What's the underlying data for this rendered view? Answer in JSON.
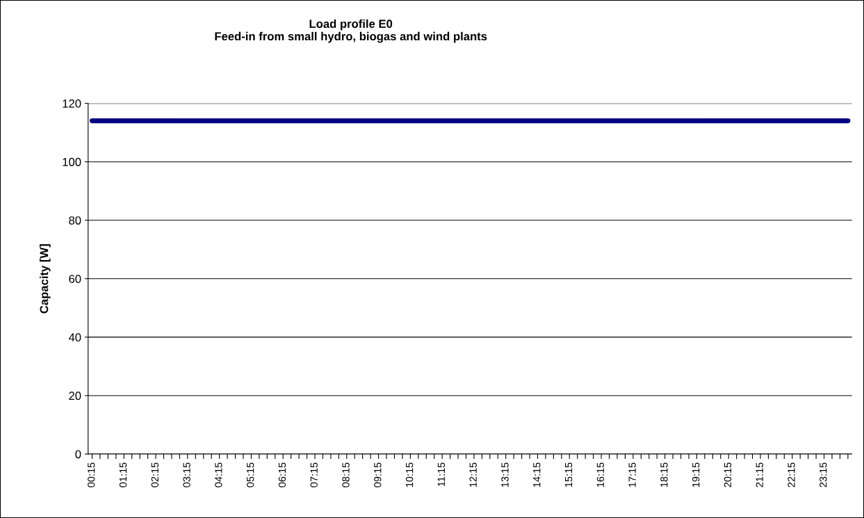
{
  "chart_data": {
    "type": "line",
    "title": "Load profile E0\nFeed-in from small hydro, biogas and wind plants",
    "ylabel": "Capacity [W]",
    "categories": [
      "00:15",
      null,
      null,
      null,
      "01:15",
      null,
      null,
      null,
      "02:15",
      null,
      null,
      null,
      "03:15",
      null,
      null,
      null,
      "04:15",
      null,
      null,
      null,
      "05:15",
      null,
      null,
      null,
      "06:15",
      null,
      null,
      null,
      "07:15",
      null,
      null,
      null,
      "08:15",
      null,
      null,
      null,
      "09:15",
      null,
      null,
      null,
      "10:15",
      null,
      null,
      null,
      "11:15",
      null,
      null,
      null,
      "12:15",
      null,
      null,
      null,
      "13:15",
      null,
      null,
      null,
      "14:15",
      null,
      null,
      null,
      "15:15",
      null,
      null,
      null,
      "16:15",
      null,
      null,
      null,
      "17:15",
      null,
      null,
      null,
      "18:15",
      null,
      null,
      null,
      "19:15",
      null,
      null,
      null,
      "20:15",
      null,
      null,
      null,
      "21:15",
      null,
      null,
      null,
      "22:15",
      null,
      null,
      null,
      "23:15",
      null,
      null,
      null
    ],
    "series": [
      {
        "color": "#000080",
        "values": [
          114,
          114,
          114,
          114,
          114,
          114,
          114,
          114,
          114,
          114,
          114,
          114,
          114,
          114,
          114,
          114,
          114,
          114,
          114,
          114,
          114,
          114,
          114,
          114,
          114,
          114,
          114,
          114,
          114,
          114,
          114,
          114,
          114,
          114,
          114,
          114,
          114,
          114,
          114,
          114,
          114,
          114,
          114,
          114,
          114,
          114,
          114,
          114,
          114,
          114,
          114,
          114,
          114,
          114,
          114,
          114,
          114,
          114,
          114,
          114,
          114,
          114,
          114,
          114,
          114,
          114,
          114,
          114,
          114,
          114,
          114,
          114,
          114,
          114,
          114,
          114,
          114,
          114,
          114,
          114,
          114,
          114,
          114,
          114,
          114,
          114,
          114,
          114,
          114,
          114,
          114,
          114,
          114,
          114,
          114,
          114
        ]
      }
    ],
    "ylim": [
      0,
      120
    ],
    "yticks": [
      0,
      20,
      40,
      60,
      80,
      100,
      120
    ],
    "grid": "y",
    "legend": false,
    "marker": "none",
    "line_style": "solid"
  }
}
